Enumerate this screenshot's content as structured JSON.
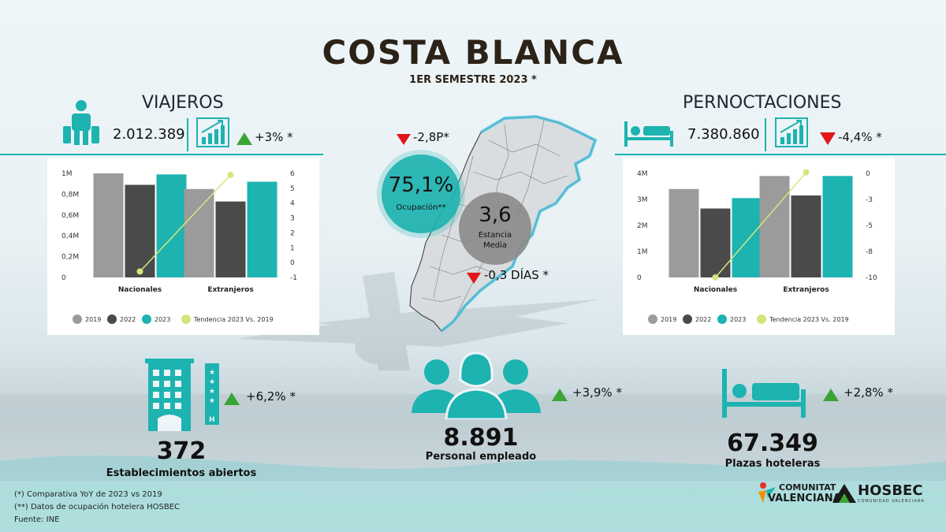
{
  "header": {
    "title": "COSTA BLANCA",
    "subtitle": "1ER SEMESTRE 2023 *"
  },
  "viajeros": {
    "title": "VIAJEROS",
    "value": "2.012.389",
    "change": "+3% *"
  },
  "pernoctaciones": {
    "title": "PERNOCTACIONES",
    "value": "7.380.860",
    "change": "-4,4% *"
  },
  "center": {
    "ocupacion_change": "-2,8P*",
    "ocupacion_value": "75,1%",
    "ocupacion_label": "Ocupación**",
    "estancia_value": "3,6",
    "estancia_label1": "Estancia",
    "estancia_label2": "Media",
    "estancia_change": "-0,3 DÍAS *"
  },
  "bottom": {
    "establecimientos": {
      "change": "+6,2% *",
      "value": "372",
      "label": "Establecimientos abiertos"
    },
    "personal": {
      "change": "+3,9% *",
      "value": "8.891",
      "label": "Personal empleado"
    },
    "plazas": {
      "change": "+2,8% *",
      "value": "67.349",
      "label": "Plazas hoteleras"
    }
  },
  "footnotes": {
    "n1": "(*) Comparativa YoY de 2023 vs 2019",
    "n2": "(**) Datos de ocupación hotelera HOSBEC",
    "n3": "Fuente: INE"
  },
  "logos": {
    "cv1": "COMUNITAT",
    "cv2": "VALENCIANA",
    "hosbec": "HOSBEC",
    "hosbec_sub": "COMUNIDAD VALENCIANA"
  },
  "colors": {
    "y2019": "#9b9b9b",
    "y2022": "#4a4a4a",
    "y2023": "#1db3b0",
    "trend": "#d4e67a",
    "up": "#3aa535",
    "down": "#e0161b"
  },
  "chart_data": [
    {
      "type": "bar",
      "categories": [
        "Nacionales",
        "Extranjeros"
      ],
      "series": [
        {
          "name": "2019",
          "values": [
            1000000,
            850000
          ]
        },
        {
          "name": "2022",
          "values": [
            890000,
            730000
          ]
        },
        {
          "name": "2023",
          "values": [
            990000,
            920000
          ]
        },
        {
          "name": "Tendencia 2023 Vs. 2019",
          "type": "line",
          "axis": "right",
          "values": [
            -0.6,
            5.9
          ]
        }
      ],
      "left_ticks": [
        "0",
        "0,2M",
        "0,4M",
        "0,6M",
        "0,8M",
        "1M"
      ],
      "right_ticks": [
        "-1",
        "0",
        "1",
        "2",
        "3",
        "4",
        "5",
        "6"
      ],
      "ylim": [
        0,
        1000000
      ],
      "y2lim": [
        -1,
        6
      ],
      "legend": "bottom"
    },
    {
      "type": "bar",
      "categories": [
        "Nacionales",
        "Extranjeros"
      ],
      "series": [
        {
          "name": "2019",
          "values": [
            3400000,
            3900000
          ]
        },
        {
          "name": "2022",
          "values": [
            2650000,
            3150000
          ]
        },
        {
          "name": "2023",
          "values": [
            3050000,
            3900000
          ]
        },
        {
          "name": "Tendencia 2023 Vs. 2019",
          "type": "line",
          "axis": "right",
          "values": [
            -10,
            0.1
          ]
        }
      ],
      "left_ticks": [
        "0",
        "1M",
        "2M",
        "3M",
        "4M"
      ],
      "right_ticks": [
        "-10",
        "-8",
        "-5",
        "-3",
        "0"
      ],
      "ylim": [
        0,
        4000000
      ],
      "y2lim": [
        -10,
        0
      ],
      "legend": "bottom"
    }
  ]
}
